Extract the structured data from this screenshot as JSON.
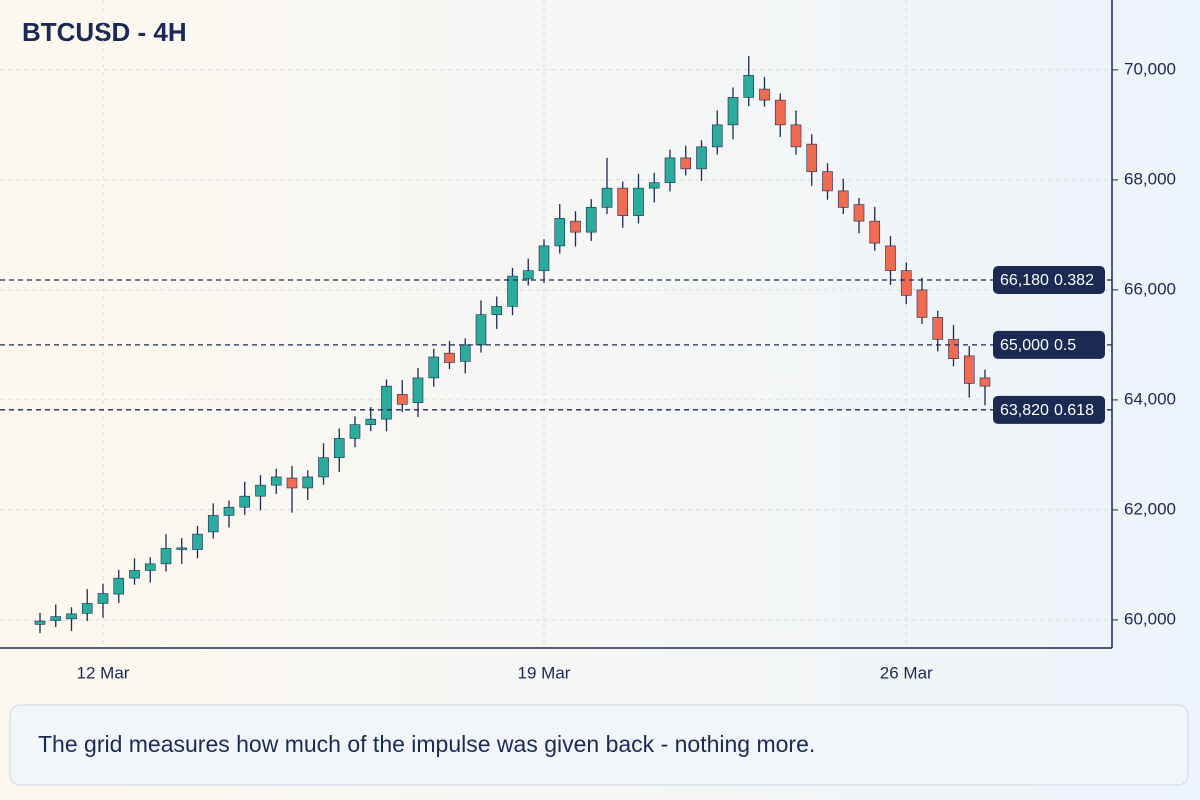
{
  "chart_data": {
    "type": "candlestick",
    "title": "BTCUSD - 4H",
    "caption": "The grid measures how much of the impulse was given back - nothing more.",
    "categories": [
      null,
      null,
      null,
      null,
      "12 Mar",
      null,
      null,
      null,
      null,
      null,
      null,
      null,
      null,
      null,
      null,
      null,
      null,
      null,
      null,
      null,
      null,
      null,
      null,
      null,
      null,
      null,
      null,
      null,
      null,
      null,
      null,
      null,
      "19 Mar",
      null,
      null,
      null,
      null,
      null,
      null,
      null,
      null,
      null,
      null,
      null,
      null,
      null,
      null,
      null,
      null,
      null,
      null,
      null,
      null,
      null,
      null,
      "26 Mar",
      null,
      null,
      null,
      null,
      null
    ],
    "open": [
      59920,
      59990,
      60020,
      60120,
      60300,
      60470,
      60760,
      60900,
      61020,
      61280,
      61280,
      61600,
      61900,
      62050,
      62250,
      62450,
      62580,
      62400,
      62600,
      62950,
      63300,
      63550,
      63650,
      64100,
      63950,
      64400,
      64850,
      64700,
      65000,
      65550,
      65700,
      66200,
      66350,
      66800,
      67250,
      67050,
      67500,
      67850,
      67350,
      67850,
      67950,
      68400,
      68200,
      68600,
      69000,
      69500,
      69650,
      69450,
      69000,
      68650,
      68150,
      67800,
      67550,
      67250,
      66800,
      66350,
      66000,
      65500,
      65100,
      64800,
      64400
    ],
    "high": [
      60130,
      60280,
      60230,
      60560,
      60660,
      60910,
      61120,
      61140,
      61560,
      61490,
      61710,
      62120,
      62170,
      62510,
      62630,
      62750,
      62800,
      62720,
      63210,
      63480,
      63700,
      63870,
      64370,
      64360,
      64580,
      64930,
      65070,
      65120,
      65810,
      65880,
      66400,
      66570,
      66920,
      67560,
      67430,
      67650,
      68400,
      67970,
      68110,
      68130,
      68550,
      68620,
      68720,
      69260,
      69680,
      70250,
      69870,
      69570,
      69260,
      68830,
      68300,
      68020,
      67670,
      67510,
      66980,
      66500,
      66220,
      65620,
      65360,
      64980,
      64550
    ],
    "low": [
      59760,
      59870,
      59800,
      59980,
      60040,
      60310,
      60640,
      60680,
      60880,
      61020,
      61120,
      61480,
      61680,
      61910,
      61990,
      62290,
      61950,
      62180,
      62460,
      62690,
      63140,
      63430,
      63430,
      63780,
      63690,
      64240,
      64560,
      64480,
      64860,
      65290,
      65540,
      66080,
      66130,
      66660,
      66790,
      66890,
      67380,
      67130,
      67210,
      67590,
      67790,
      68080,
      67980,
      68460,
      68740,
      69340,
      69330,
      68780,
      68460,
      67890,
      67640,
      67380,
      67030,
      66710,
      66090,
      65740,
      65380,
      64880,
      64610,
      64040,
      63900
    ],
    "close": [
      59980,
      60060,
      60110,
      60300,
      60480,
      60760,
      60900,
      61020,
      61300,
      61310,
      61560,
      61900,
      62050,
      62250,
      62450,
      62600,
      62400,
      62600,
      62950,
      63300,
      63550,
      63650,
      64250,
      63920,
      64400,
      64780,
      64680,
      65000,
      65550,
      65700,
      66250,
      66350,
      66800,
      67300,
      67050,
      67500,
      67850,
      67350,
      67850,
      67950,
      68400,
      68200,
      68600,
      69000,
      69500,
      69900,
      69450,
      69000,
      68600,
      68150,
      67800,
      67500,
      67250,
      66850,
      66350,
      65900,
      65500,
      65100,
      64750,
      64300,
      64250
    ],
    "up_color": "#2bab9c",
    "down_color": "#ef6b52",
    "ylim": [
      59490,
      71270
    ],
    "yticks": [
      {
        "value": 60000,
        "label": "60,000"
      },
      {
        "value": 62000,
        "label": "62,000"
      },
      {
        "value": 64000,
        "label": "64,000"
      },
      {
        "value": 66000,
        "label": "66,000"
      },
      {
        "value": 68000,
        "label": "68,000"
      },
      {
        "value": 70000,
        "label": "70,000"
      }
    ],
    "grid": true,
    "fib_levels": [
      {
        "value": 66180,
        "label": "66,180",
        "ratio": 0.382
      },
      {
        "value": 65000,
        "label": "65,000",
        "ratio": 0.5
      },
      {
        "value": 63820,
        "label": "63,820",
        "ratio": 0.618
      }
    ],
    "fib_color": "#1b2a52"
  }
}
